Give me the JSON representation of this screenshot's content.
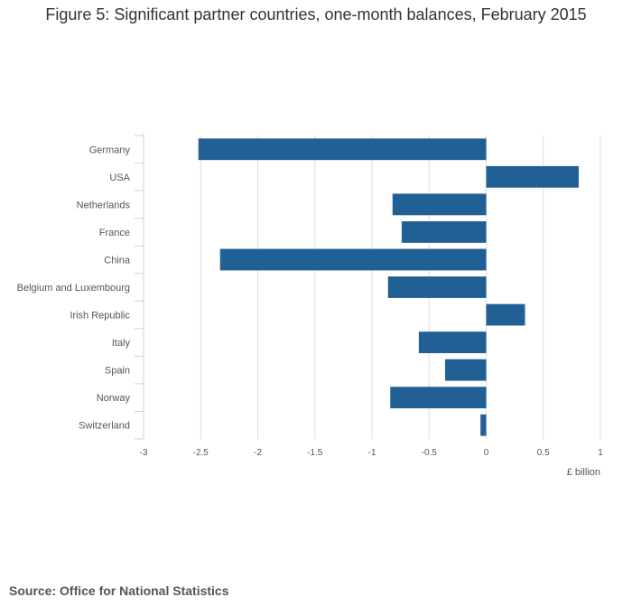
{
  "title": "Figure 5: Significant partner countries, one-month balances, February 2015",
  "source": "Source: Office for National Statistics",
  "colors": {
    "bar": "#206095",
    "grid": "#dddddd",
    "axis": "#c8d0e0"
  },
  "chart_data": {
    "type": "bar",
    "orientation": "horizontal",
    "categories": [
      "Germany",
      "USA",
      "Netherlands",
      "France",
      "China",
      "Belgium and Luxembourg",
      "Irish Republic",
      "Italy",
      "Spain",
      "Norway",
      "Switzerland"
    ],
    "values": [
      -2.52,
      0.81,
      -0.82,
      -0.74,
      -2.33,
      -0.86,
      0.34,
      -0.59,
      -0.36,
      -0.84,
      -0.05
    ],
    "xlim": [
      -3,
      1
    ],
    "xticks": [
      -3,
      -2.5,
      -2,
      -1.5,
      -1,
      -0.5,
      0,
      0.5,
      1
    ],
    "xtick_labels": [
      "-3",
      "-2.5",
      "-2",
      "-1.5",
      "-1",
      "-0.5",
      "0",
      "0.5",
      "1"
    ],
    "xlabel": "£ billion",
    "grid": true
  }
}
